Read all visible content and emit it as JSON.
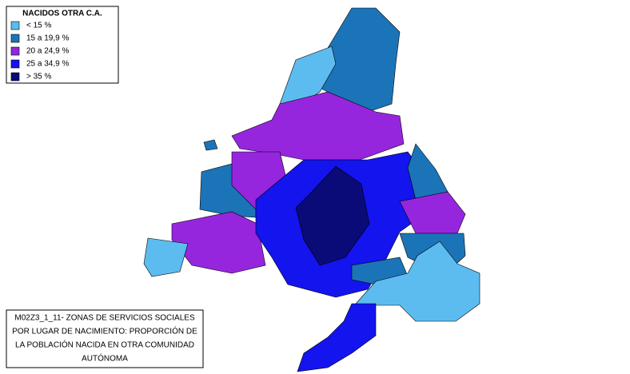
{
  "legend": {
    "title": "NACIDOS OTRA C.A.",
    "items": [
      {
        "label": "< 15 %",
        "color": "#5cbcf0"
      },
      {
        "label": "15 a 19,9 %",
        "color": "#1c74b8"
      },
      {
        "label": "20 a 24,9 %",
        "color": "#9626de"
      },
      {
        "label": "25 a 34,9 %",
        "color": "#1414ee"
      },
      {
        "label": "> 35 %",
        "color": "#0a0a78"
      }
    ]
  },
  "caption": {
    "lines": [
      "M02Z3_1_11- ZONAS DE SERVICIOS SOCIALES",
      "POR LUGAR DE NACIMIENTO: PROPORCIÓN DE",
      "LA POBLACIÓN NACIDA EN OTRA COMUNIDAD",
      "AUTÓNOMA"
    ]
  }
}
